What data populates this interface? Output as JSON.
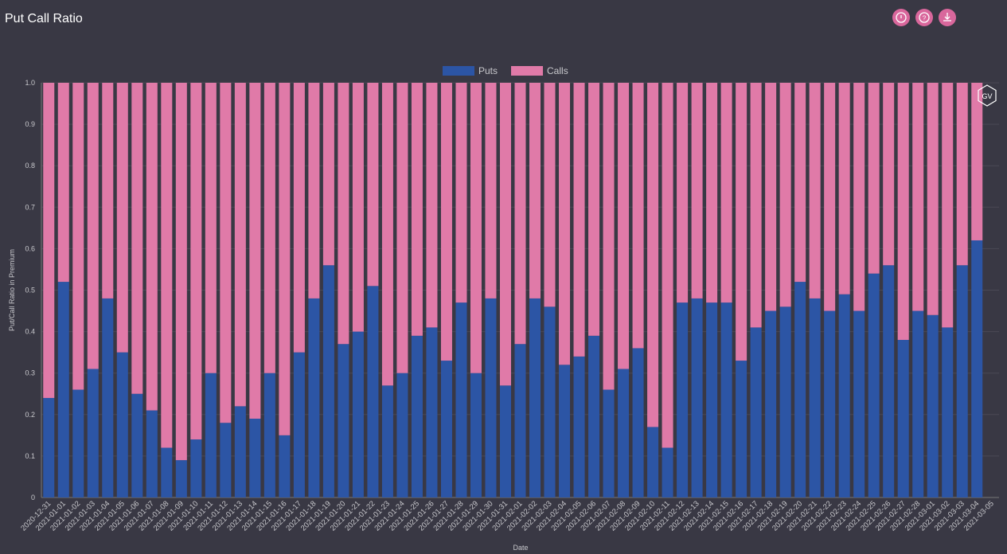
{
  "header": {
    "title": "Put Call Ratio"
  },
  "chart_data": {
    "type": "stacked-bar",
    "badge": "GV",
    "xlabel": "Date",
    "ylabel": "Put/Call Ratio in Premium",
    "categories": [
      "2020-12-31",
      "2021-01-01",
      "2021-01-02",
      "2021-01-03",
      "2021-01-04",
      "2021-01-05",
      "2021-01-06",
      "2021-01-07",
      "2021-01-08",
      "2021-01-09",
      "2021-01-10",
      "2021-01-11",
      "2021-01-12",
      "2021-01-13",
      "2021-01-14",
      "2021-01-15",
      "2021-01-16",
      "2021-01-17",
      "2021-01-18",
      "2021-01-19",
      "2021-01-20",
      "2021-01-21",
      "2021-01-22",
      "2021-01-23",
      "2021-01-24",
      "2021-01-25",
      "2021-01-26",
      "2021-01-27",
      "2021-01-28",
      "2021-01-29",
      "2021-01-30",
      "2021-01-31",
      "2021-02-01",
      "2021-02-02",
      "2021-02-03",
      "2021-02-04",
      "2021-02-05",
      "2021-02-06",
      "2021-02-07",
      "2021-02-08",
      "2021-02-09",
      "2021-02-10",
      "2021-02-11",
      "2021-02-12",
      "2021-02-13",
      "2021-02-14",
      "2021-02-15",
      "2021-02-16",
      "2021-02-17",
      "2021-02-18",
      "2021-02-19",
      "2021-02-20",
      "2021-02-21",
      "2021-02-22",
      "2021-02-23",
      "2021-02-24",
      "2021-02-25",
      "2021-02-26",
      "2021-02-27",
      "2021-02-28",
      "2021-03-01",
      "2021-03-02",
      "2021-03-03",
      "2021-03-04",
      "2021-03-05"
    ],
    "series": [
      {
        "name": "Puts",
        "color": "#2c55a5",
        "values": [
          0.24,
          0.52,
          0.26,
          0.31,
          0.48,
          0.35,
          0.25,
          0.21,
          0.12,
          0.09,
          0.14,
          0.3,
          0.18,
          0.22,
          0.19,
          0.3,
          0.15,
          0.35,
          0.48,
          0.56,
          0.37,
          0.4,
          0.51,
          0.27,
          0.3,
          0.39,
          0.41,
          0.33,
          0.47,
          0.3,
          0.48,
          0.27,
          0.37,
          0.48,
          0.46,
          0.32,
          0.34,
          0.39,
          0.26,
          0.31,
          0.36,
          0.17,
          0.12,
          0.47,
          0.48,
          0.47,
          0.47,
          0.33,
          0.41,
          0.45,
          0.46,
          0.52,
          0.48,
          0.45,
          0.49,
          0.45,
          0.54,
          0.56,
          0.38,
          0.45,
          0.44,
          0.41,
          0.56,
          0.62,
          null
        ]
      },
      {
        "name": "Calls",
        "color": "#e07aa8",
        "values": [
          0.76,
          0.48,
          0.74,
          0.69,
          0.52,
          0.65,
          0.75,
          0.79,
          0.88,
          0.91,
          0.86,
          0.7,
          0.82,
          0.78,
          0.81,
          0.7,
          0.85,
          0.65,
          0.52,
          0.44,
          0.63,
          0.6,
          0.49,
          0.73,
          0.7,
          0.61,
          0.59,
          0.67,
          0.53,
          0.7,
          0.52,
          0.73,
          0.63,
          0.52,
          0.54,
          0.68,
          0.66,
          0.61,
          0.74,
          0.69,
          0.64,
          0.83,
          0.88,
          0.53,
          0.52,
          0.53,
          0.53,
          0.67,
          0.59,
          0.55,
          0.54,
          0.48,
          0.52,
          0.55,
          0.51,
          0.55,
          0.46,
          0.44,
          0.62,
          0.55,
          0.56,
          0.59,
          0.44,
          0.38,
          null
        ]
      }
    ],
    "ylim": [
      0,
      1
    ],
    "yticks": [
      0,
      0.1,
      0.2,
      0.3,
      0.4,
      0.5,
      0.6,
      0.7,
      0.8,
      0.9,
      {
        "value": 1,
        "label": "1.0"
      }
    ],
    "grid": true
  }
}
